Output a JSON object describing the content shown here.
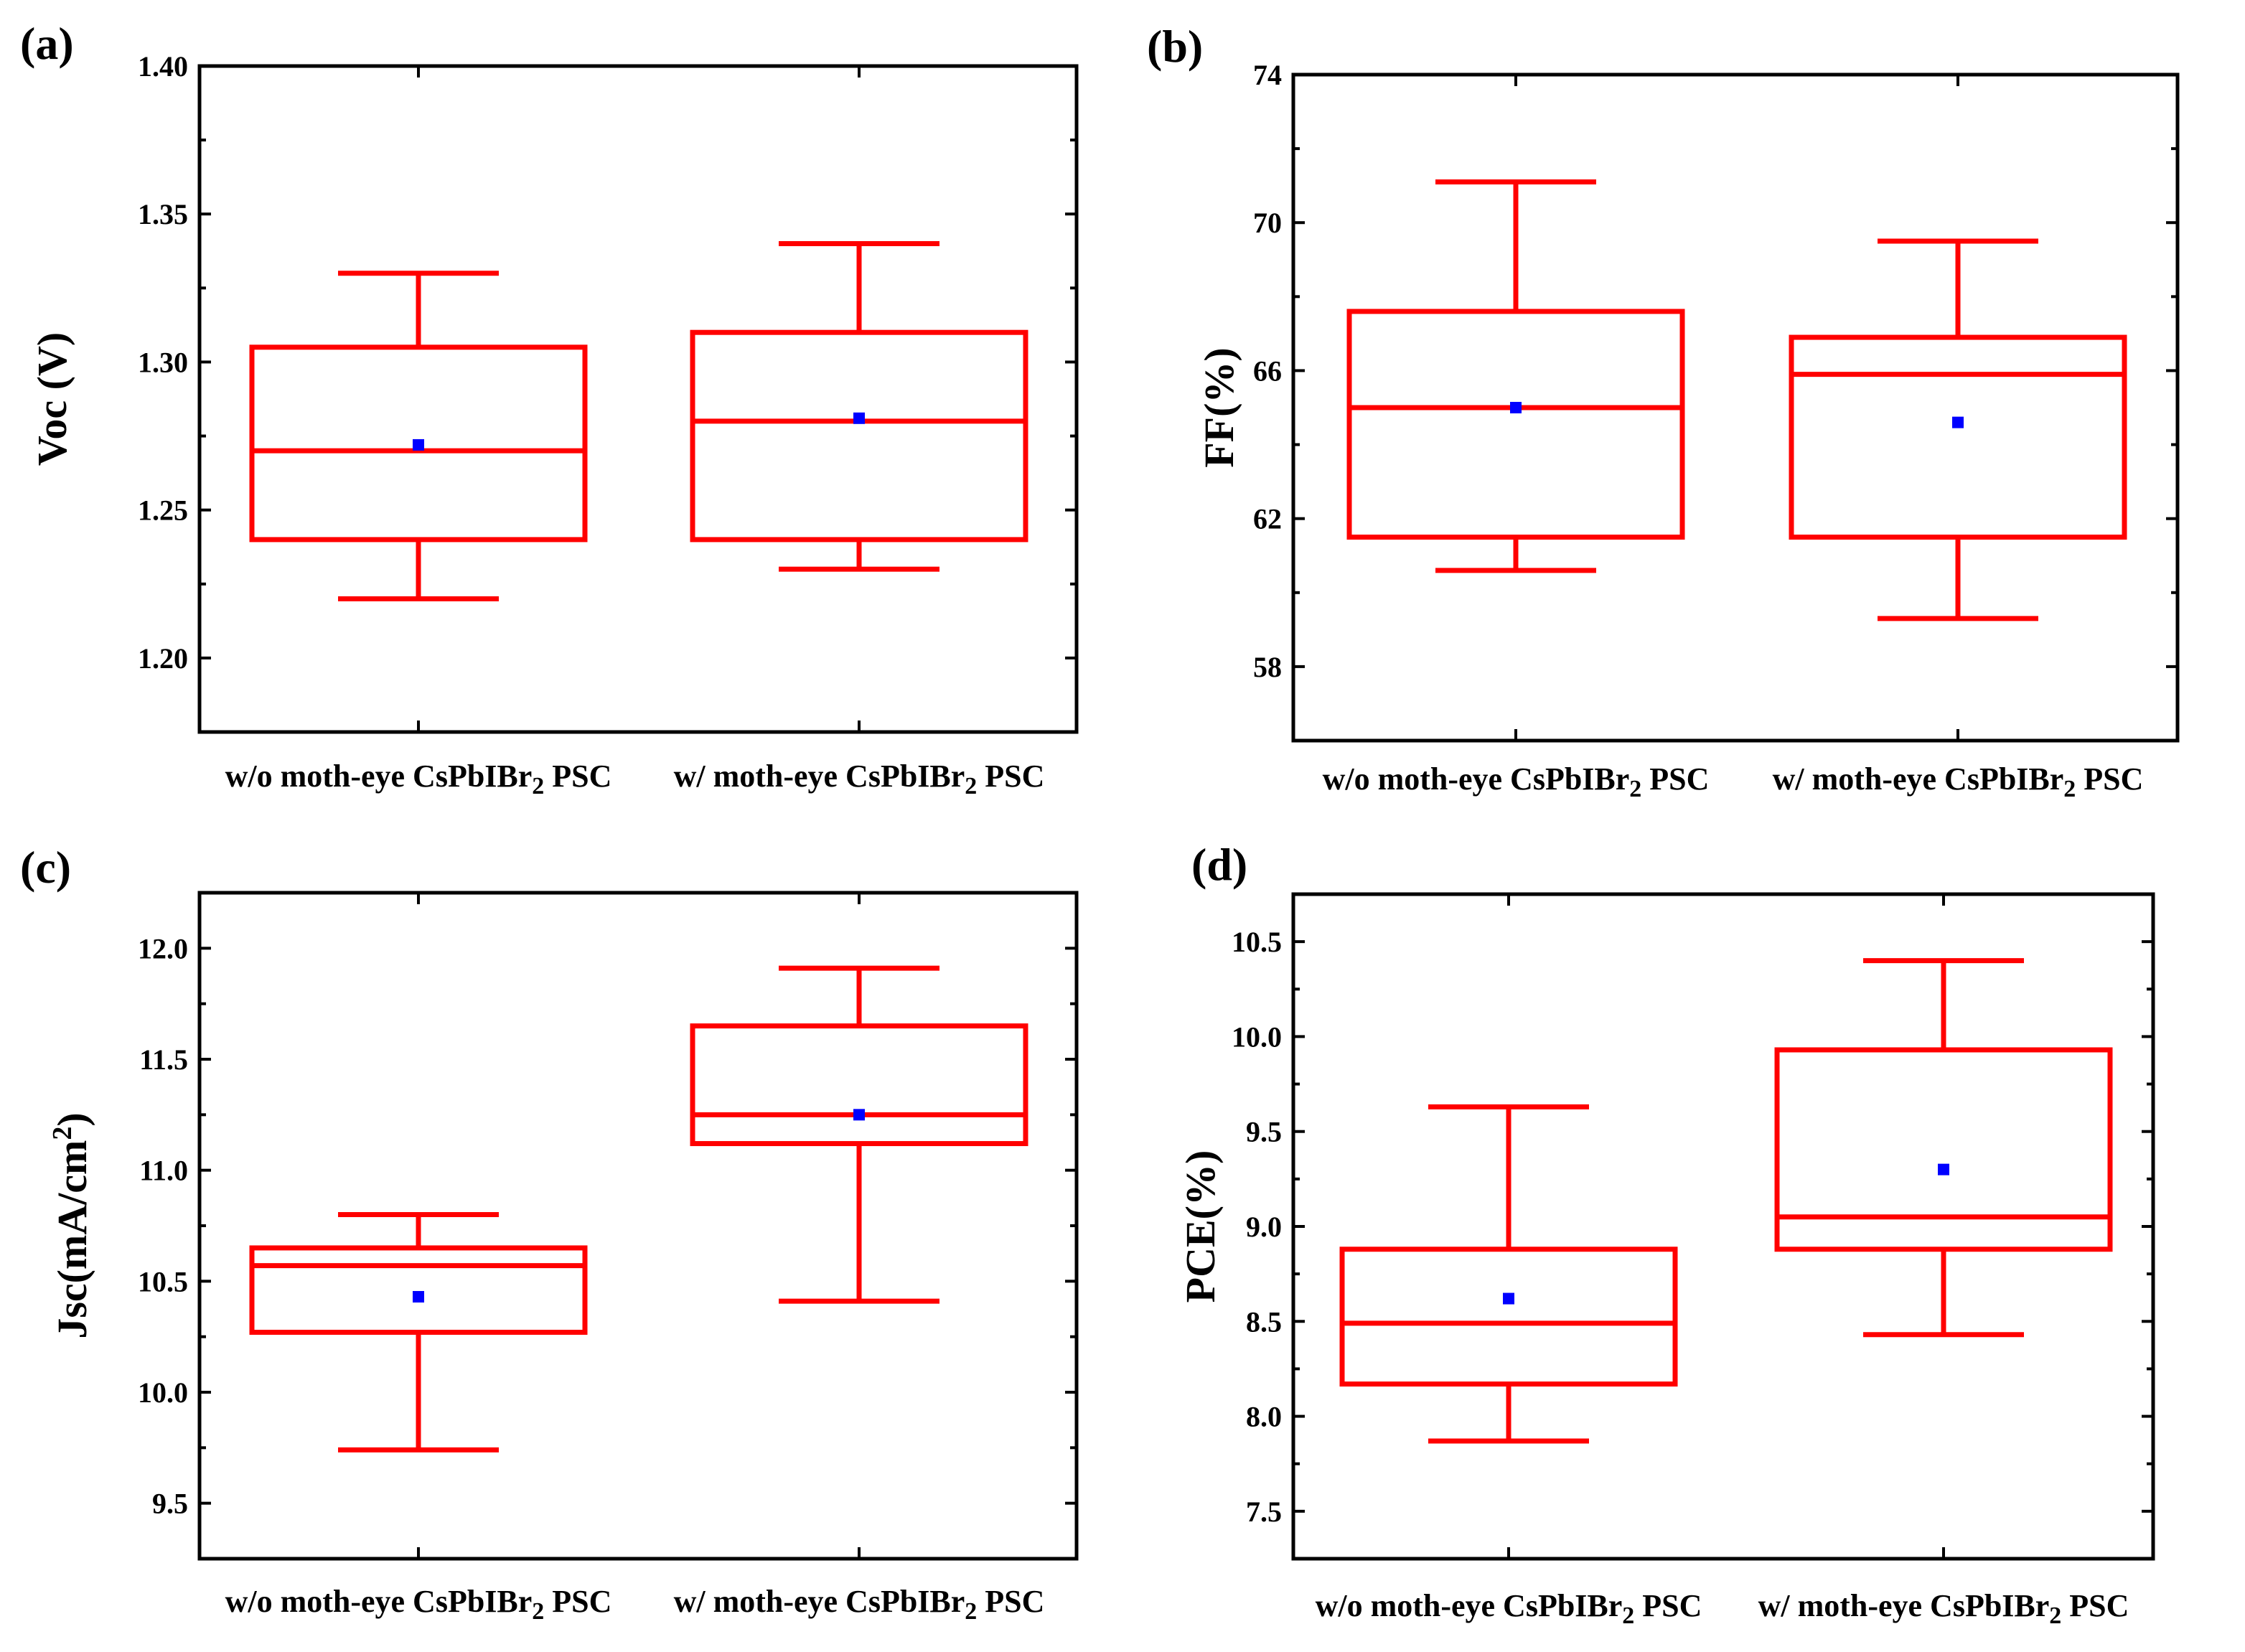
{
  "chart_data": [
    {
      "type": "box",
      "panel": "(a)",
      "ylabel": "Voc (V)",
      "ylim": [
        1.175,
        1.4
      ],
      "yticks": [
        "1.20",
        "1.25",
        "1.30",
        "1.35",
        "1.40"
      ],
      "ytick_values": [
        1.2,
        1.25,
        1.3,
        1.35,
        1.4
      ],
      "categories": [
        {
          "label": "w/o moth-eye CsPbIBr",
          "sub": "2",
          "suffix": " PSC"
        },
        {
          "label": "w/  moth-eye CsPbIBr",
          "sub": "2",
          "suffix": " PSC"
        }
      ],
      "boxes": [
        {
          "min": 1.22,
          "q1": 1.24,
          "median": 1.27,
          "q3": 1.305,
          "max": 1.33,
          "mean": 1.272
        },
        {
          "min": 1.23,
          "q1": 1.24,
          "median": 1.28,
          "q3": 1.31,
          "max": 1.34,
          "mean": 1.281
        }
      ]
    },
    {
      "type": "box",
      "panel": "(b)",
      "ylabel": "FF(%)",
      "ylim": [
        56.0,
        74.0
      ],
      "yticks": [
        "58",
        "62",
        "66",
        "70",
        "74"
      ],
      "ytick_values": [
        58,
        62,
        66,
        70,
        74
      ],
      "categories": [
        {
          "label": "w/o moth-eye CsPbIBr",
          "sub": "2",
          "suffix": " PSC"
        },
        {
          "label": "w/ moth-eye CsPbIBr",
          "sub": "2",
          "suffix": " PSC"
        }
      ],
      "boxes": [
        {
          "min": 60.6,
          "q1": 61.5,
          "median": 65.0,
          "q3": 67.6,
          "max": 71.1,
          "mean": 65.0
        },
        {
          "min": 59.3,
          "q1": 61.5,
          "median": 65.9,
          "q3": 66.9,
          "max": 69.5,
          "mean": 64.6
        }
      ]
    },
    {
      "type": "box",
      "panel": "(c)",
      "ylabel": "Jsc(mA/cm",
      "ylabel_sup": "2",
      "ylabel_suffix": ")",
      "ylim": [
        9.25,
        12.25
      ],
      "yticks": [
        "9.5",
        "10.0",
        "10.5",
        "11.0",
        "11.5",
        "12.0"
      ],
      "ytick_values": [
        9.5,
        10.0,
        10.5,
        11.0,
        11.5,
        12.0
      ],
      "categories": [
        {
          "label": "w/o moth-eye CsPbIBr",
          "sub": "2",
          "suffix": " PSC"
        },
        {
          "label": "w/ moth-eye CsPbIBr",
          "sub": "2",
          "suffix": " PSC"
        }
      ],
      "boxes": [
        {
          "min": 9.74,
          "q1": 10.27,
          "median": 10.57,
          "q3": 10.65,
          "max": 10.8,
          "mean": 10.43
        },
        {
          "min": 10.41,
          "q1": 11.12,
          "median": 11.25,
          "q3": 11.65,
          "max": 11.91,
          "mean": 11.25
        }
      ]
    },
    {
      "type": "box",
      "panel": "(d)",
      "ylabel": "PCE(%)",
      "ylim": [
        7.25,
        10.75
      ],
      "yticks": [
        "7.5",
        "8.0",
        "8.5",
        "9.0",
        "9.5",
        "10.0",
        "10.5"
      ],
      "ytick_values": [
        7.5,
        8.0,
        8.5,
        9.0,
        9.5,
        10.0,
        10.5
      ],
      "categories": [
        {
          "label": "w/o moth-eye CsPbIBr",
          "sub": "2",
          "suffix": " PSC"
        },
        {
          "label": "w/ moth-eye CsPbIBr",
          "sub": "2",
          "suffix": " PSC"
        }
      ],
      "boxes": [
        {
          "min": 7.87,
          "q1": 8.17,
          "median": 8.49,
          "q3": 8.88,
          "max": 9.63,
          "mean": 8.62
        },
        {
          "min": 8.43,
          "q1": 8.88,
          "median": 9.05,
          "q3": 9.93,
          "max": 10.4,
          "mean": 9.3
        }
      ]
    }
  ],
  "colors": {
    "box": "#ff0000",
    "mean": "#0000ff",
    "frame": "#000000"
  }
}
